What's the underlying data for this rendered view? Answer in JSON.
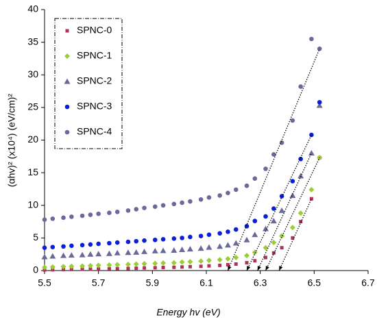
{
  "chart_data": {
    "type": "scatter",
    "xlabel": "Energy hv (eV)",
    "ylabel": "(αhv)² (x10⁴) (eV/cm)²",
    "xlim": [
      5.5,
      6.7
    ],
    "xticks": [
      5.5,
      5.7,
      5.9,
      6.1,
      6.3,
      6.5,
      6.7
    ],
    "ylim": [
      0,
      40
    ],
    "yticks": [
      0,
      5,
      10,
      15,
      20,
      25,
      30,
      35,
      40
    ],
    "x": [
      5.5,
      5.53,
      5.57,
      5.6,
      5.64,
      5.67,
      5.7,
      5.74,
      5.77,
      5.81,
      5.84,
      5.87,
      5.91,
      5.94,
      5.98,
      6.01,
      6.04,
      6.08,
      6.11,
      6.15,
      6.18,
      6.21,
      6.25,
      6.28,
      6.32,
      6.35,
      6.38,
      6.42,
      6.45,
      6.49,
      6.52
    ],
    "series": [
      {
        "name": "SPNC-0",
        "color": "#b0305e",
        "marker": "square",
        "values": [
          0.1,
          0.12,
          0.15,
          0.18,
          0.2,
          0.22,
          0.25,
          0.28,
          0.3,
          0.33,
          0.36,
          0.4,
          0.43,
          0.47,
          0.5,
          0.55,
          0.6,
          0.65,
          0.72,
          0.8,
          0.9,
          1.0,
          1.2,
          1.5,
          2.0,
          2.7,
          3.5,
          5.0,
          7.5,
          11.0,
          17.3
        ]
      },
      {
        "name": "SPNC-1",
        "color": "#9acd32",
        "marker": "diamond",
        "values": [
          0.5,
          0.55,
          0.6,
          0.65,
          0.7,
          0.75,
          0.8,
          0.85,
          0.9,
          0.95,
          1.0,
          1.05,
          1.1,
          1.15,
          1.2,
          1.3,
          1.35,
          1.45,
          1.55,
          1.65,
          1.8,
          2.0,
          2.3,
          2.8,
          3.5,
          4.3,
          5.3,
          6.6,
          8.8,
          12.4,
          17.3
        ]
      },
      {
        "name": "SPNC-2",
        "color": "#6a6a9a",
        "marker": "triangle",
        "values": [
          2.1,
          2.2,
          2.3,
          2.35,
          2.4,
          2.5,
          2.55,
          2.6,
          2.7,
          2.75,
          2.8,
          2.9,
          3.0,
          3.05,
          3.1,
          3.2,
          3.3,
          3.4,
          3.55,
          3.7,
          3.9,
          4.2,
          4.7,
          5.5,
          6.4,
          7.6,
          9.2,
          11.5,
          14.5,
          18.0,
          25.3
        ]
      },
      {
        "name": "SPNC-3",
        "color": "#0a1fd6",
        "marker": "circle",
        "values": [
          3.5,
          3.6,
          3.7,
          3.8,
          3.9,
          4.0,
          4.1,
          4.2,
          4.3,
          4.4,
          4.5,
          4.6,
          4.7,
          4.8,
          4.9,
          5.0,
          5.15,
          5.3,
          5.5,
          5.7,
          5.95,
          6.3,
          6.8,
          7.6,
          8.3,
          9.5,
          11.4,
          13.7,
          17.1,
          20.8,
          25.8
        ]
      },
      {
        "name": "SPNC-4",
        "color": "#6a6a9a",
        "marker": "circle",
        "values": [
          7.8,
          7.95,
          8.1,
          8.25,
          8.4,
          8.55,
          8.7,
          8.85,
          9.0,
          9.2,
          9.4,
          9.6,
          9.8,
          10.0,
          10.2,
          10.4,
          10.6,
          10.9,
          11.2,
          11.5,
          11.9,
          12.4,
          13.0,
          14.1,
          15.6,
          17.8,
          19.6,
          23.0,
          28.2,
          35.5,
          34.0
        ]
      }
    ],
    "fit_lines": [
      {
        "x": [
          6.18,
          6.52
        ],
        "y": [
          0,
          34.0
        ]
      },
      {
        "x": [
          6.25,
          6.49
        ],
        "y": [
          0,
          20.8
        ]
      },
      {
        "x": [
          6.29,
          6.49
        ],
        "y": [
          0,
          18.0
        ]
      },
      {
        "x": [
          6.32,
          6.52
        ],
        "y": [
          0,
          17.3
        ]
      },
      {
        "x": [
          6.37,
          6.49
        ],
        "y": [
          0,
          11.0
        ]
      }
    ]
  }
}
